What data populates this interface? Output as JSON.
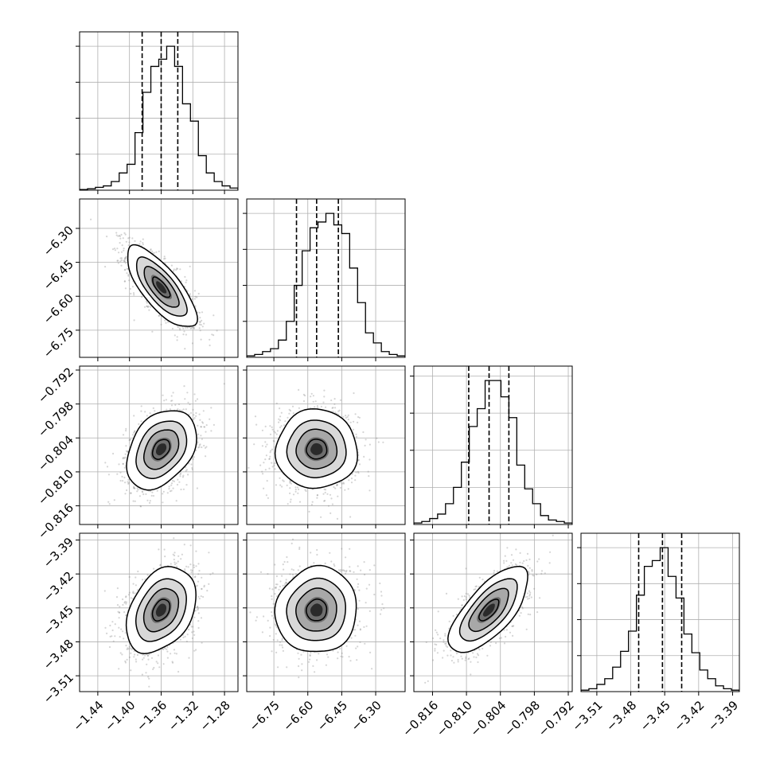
{
  "chart_data": {
    "type": "corner",
    "parameters": [
      {
        "ticks": [
          -1.44,
          -1.4,
          -1.36,
          -1.32,
          -1.28
        ],
        "tick_labels": [
          "−1.44",
          "−1.40",
          "−1.36",
          "−1.32",
          "−1.28"
        ],
        "range": [
          -1.463,
          -1.263
        ],
        "quantiles": [
          -1.384,
          -1.36,
          -1.339
        ],
        "median": -1.36,
        "sigma": 0.022
      },
      {
        "ticks": [
          -6.75,
          -6.6,
          -6.45,
          -6.3
        ],
        "tick_labels": [
          "−6.75",
          "−6.60",
          "−6.45",
          "−6.30"
        ],
        "range": [
          -6.87,
          -6.17
        ],
        "quantiles": [
          -6.65,
          -6.561,
          -6.465
        ],
        "median": -6.561,
        "sigma": 0.09
      },
      {
        "ticks": [
          -0.816,
          -0.81,
          -0.804,
          -0.798,
          -0.792
        ],
        "tick_labels": [
          "−0.816",
          "−0.810",
          "−0.804",
          "−0.798",
          "−0.792"
        ],
        "range": [
          -0.8193,
          -0.7913
        ],
        "quantiles": [
          -0.8096,
          -0.806,
          -0.8025
        ],
        "median": -0.806,
        "sigma": 0.0035
      },
      {
        "ticks": [
          -3.51,
          -3.48,
          -3.45,
          -3.42,
          -3.39
        ],
        "tick_labels": [
          "−3.51",
          "−3.48",
          "−3.45",
          "−3.42",
          "−3.39"
        ],
        "range": [
          -3.524,
          -3.384
        ],
        "quantiles": [
          -3.473,
          -3.452,
          -3.435
        ],
        "median": -3.452,
        "sigma": 0.019
      }
    ],
    "correlations": [
      [
        1,
        -0.75,
        0.35,
        0.35
      ],
      [
        -0.75,
        1,
        0.0,
        0.05
      ],
      [
        0.35,
        0.0,
        1,
        0.7
      ],
      [
        0.35,
        0.05,
        0.7,
        1
      ]
    ],
    "histograms": [
      [
        0.5,
        1,
        2,
        3,
        6,
        12,
        18,
        40,
        68,
        86,
        91,
        100,
        86,
        60,
        48,
        24,
        12,
        6,
        3,
        1.5
      ],
      [
        1,
        2,
        4,
        6,
        12,
        25,
        50,
        74,
        90,
        94,
        100,
        92,
        86,
        62,
        38,
        17,
        10,
        4,
        2,
        1
      ],
      [
        1,
        2,
        4,
        7,
        14,
        25,
        42,
        66,
        78,
        97,
        97,
        86,
        72,
        40,
        24,
        14,
        6,
        3,
        2,
        1
      ],
      [
        1,
        2,
        5,
        9,
        17,
        28,
        42,
        67,
        87,
        91,
        100,
        80,
        65,
        40,
        27,
        15,
        9,
        4,
        2,
        1
      ]
    ],
    "grid": true,
    "lines": {
      "quantile_style": "dashed",
      "quantiles": [
        0.16,
        0.5,
        0.84
      ]
    }
  }
}
